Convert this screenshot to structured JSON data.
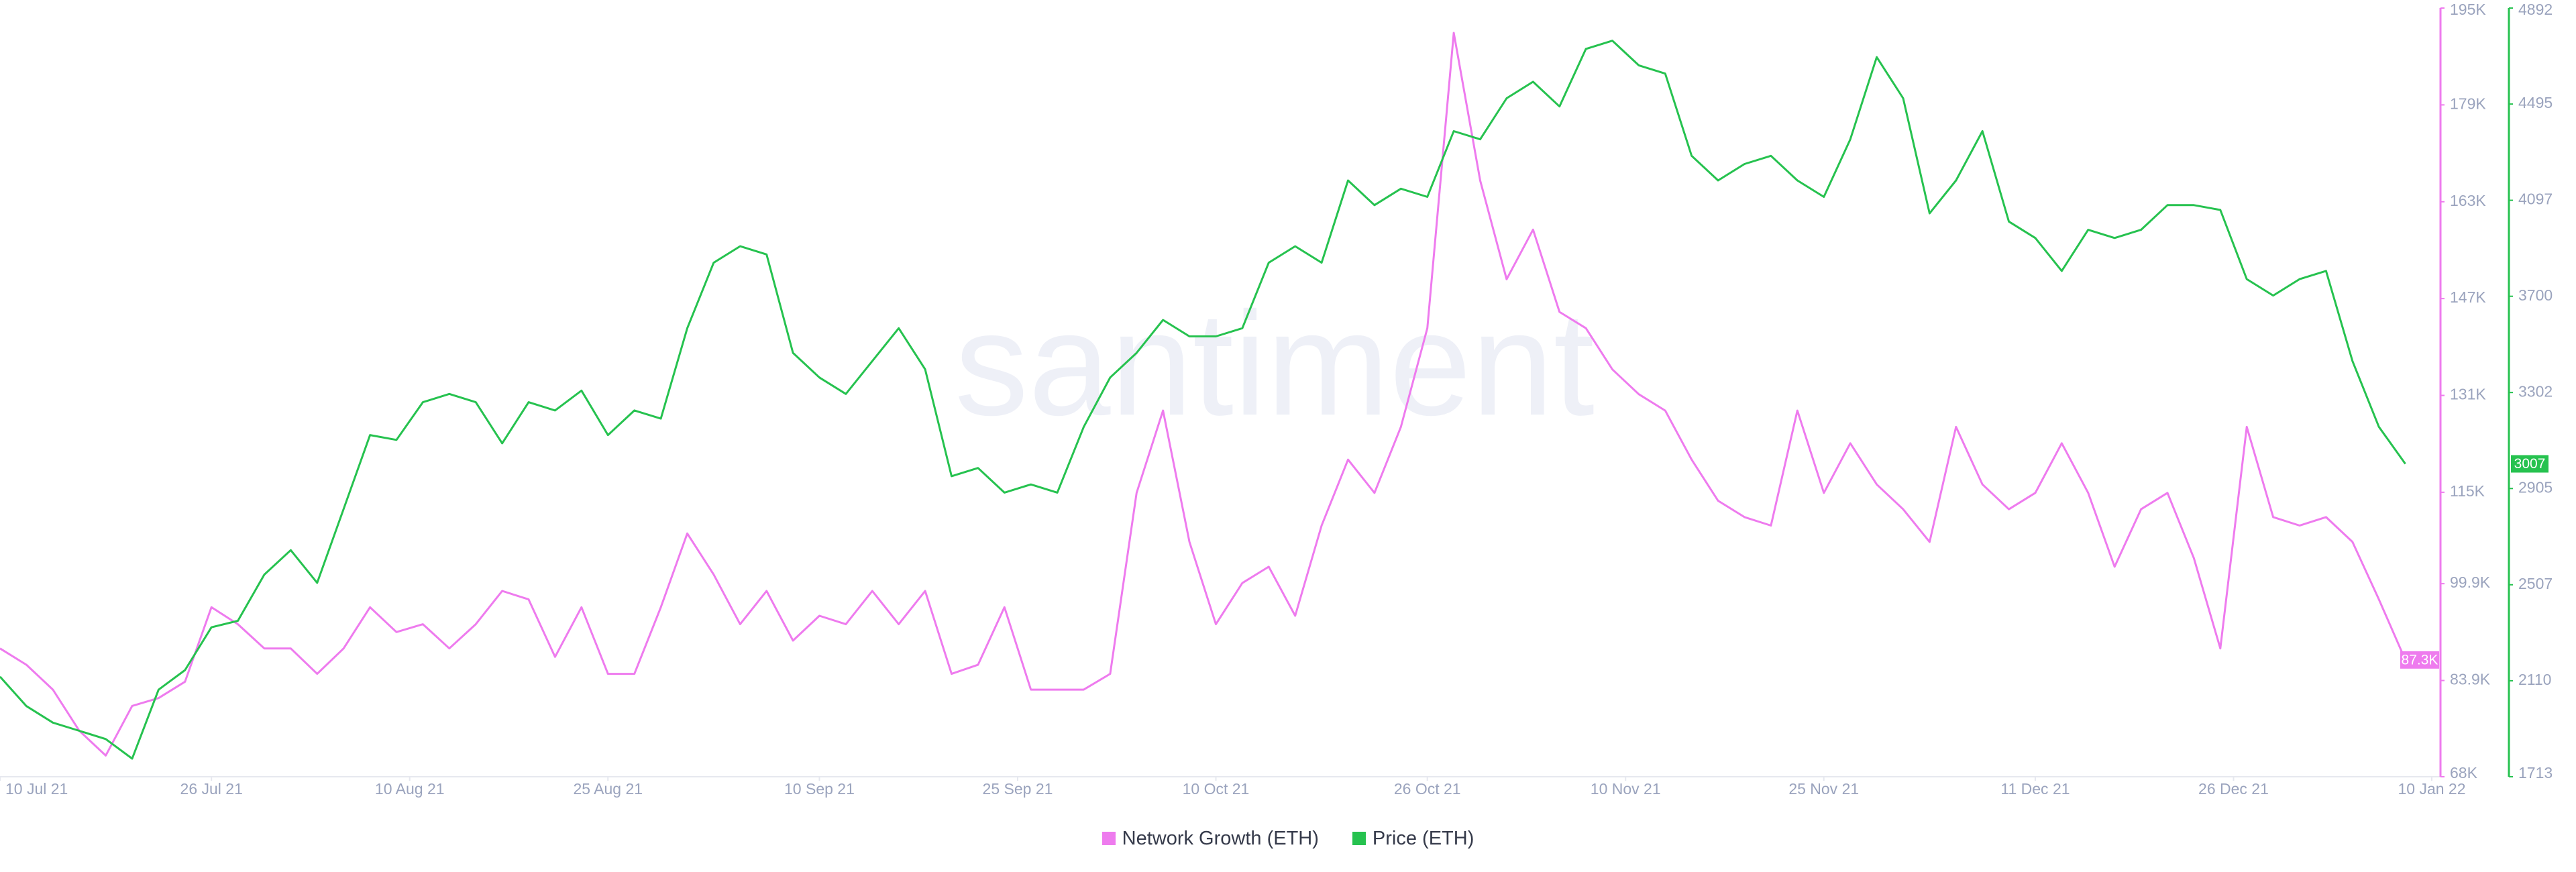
{
  "chart_data": {
    "type": "line",
    "watermark": "santiment",
    "x": [
      "10 Jul 21",
      "12 Jul 21",
      "14 Jul 21",
      "16 Jul 21",
      "18 Jul 21",
      "20 Jul 21",
      "22 Jul 21",
      "24 Jul 21",
      "26 Jul 21",
      "28 Jul 21",
      "30 Jul 21",
      "1 Aug 21",
      "3 Aug 21",
      "5 Aug 21",
      "7 Aug 21",
      "9 Aug 21",
      "11 Aug 21",
      "13 Aug 21",
      "15 Aug 21",
      "17 Aug 21",
      "19 Aug 21",
      "21 Aug 21",
      "23 Aug 21",
      "25 Aug 21",
      "27 Aug 21",
      "29 Aug 21",
      "31 Aug 21",
      "2 Sep 21",
      "4 Sep 21",
      "6 Sep 21",
      "8 Sep 21",
      "10 Sep 21",
      "12 Sep 21",
      "14 Sep 21",
      "16 Sep 21",
      "18 Sep 21",
      "20 Sep 21",
      "22 Sep 21",
      "24 Sep 21",
      "26 Sep 21",
      "28 Sep 21",
      "30 Sep 21",
      "2 Oct 21",
      "4 Oct 21",
      "6 Oct 21",
      "8 Oct 21",
      "10 Oct 21",
      "12 Oct 21",
      "14 Oct 21",
      "16 Oct 21",
      "18 Oct 21",
      "20 Oct 21",
      "22 Oct 21",
      "24 Oct 21",
      "26 Oct 21",
      "28 Oct 21",
      "30 Oct 21",
      "1 Nov 21",
      "3 Nov 21",
      "5 Nov 21",
      "7 Nov 21",
      "9 Nov 21",
      "11 Nov 21",
      "13 Nov 21",
      "15 Nov 21",
      "17 Nov 21",
      "19 Nov 21",
      "21 Nov 21",
      "23 Nov 21",
      "25 Nov 21",
      "27 Nov 21",
      "29 Nov 21",
      "1 Dec 21",
      "3 Dec 21",
      "5 Dec 21",
      "7 Dec 21",
      "9 Dec 21",
      "11 Dec 21",
      "13 Dec 21",
      "15 Dec 21",
      "17 Dec 21",
      "19 Dec 21",
      "21 Dec 21",
      "23 Dec 21",
      "25 Dec 21",
      "27 Dec 21",
      "29 Dec 21",
      "31 Dec 21",
      "2 Jan 22",
      "4 Jan 22",
      "6 Jan 22",
      "8 Jan 22"
    ],
    "xlim": [
      "10 Jul 21",
      "10 Jan 22"
    ],
    "xticks": [
      "10 Jul 21",
      "26 Jul 21",
      "10 Aug 21",
      "25 Aug 21",
      "10 Sep 21",
      "25 Sep 21",
      "10 Oct 21",
      "26 Oct 21",
      "10 Nov 21",
      "25 Nov 21",
      "11 Dec 21",
      "26 Dec 21",
      "10 Jan 22"
    ],
    "ylim": [
      68000,
      195000
    ],
    "yticks": [
      {
        "value": 68000,
        "label": "68K"
      },
      {
        "value": 83900,
        "label": "83.9K"
      },
      {
        "value": 99900,
        "label": "99.9K"
      },
      {
        "value": 115000,
        "label": "115K"
      },
      {
        "value": 131000,
        "label": "131K"
      },
      {
        "value": 147000,
        "label": "147K"
      },
      {
        "value": 163000,
        "label": "163K"
      },
      {
        "value": 179000,
        "label": "179K"
      },
      {
        "value": 195000,
        "label": "195K"
      }
    ],
    "y2lim": [
      1713,
      4892
    ],
    "y2ticks": [
      1713,
      2110,
      2507,
      2905,
      3302,
      3700,
      4097,
      4495,
      4892
    ],
    "series": [
      {
        "name": "Network Growth (ETH)",
        "color": "#ee7bee",
        "axis": "y",
        "end_label": "87.3K",
        "values": [
          89200,
          86500,
          82400,
          75600,
          71500,
          79700,
          81000,
          83700,
          96000,
          93200,
          89200,
          89200,
          85000,
          89200,
          96000,
          91900,
          93200,
          89200,
          93200,
          98700,
          97300,
          87800,
          96000,
          85000,
          85000,
          96000,
          108200,
          101400,
          93200,
          98700,
          90500,
          94600,
          93200,
          98700,
          93200,
          98700,
          85000,
          86500,
          96000,
          82400,
          82400,
          82400,
          85000,
          114900,
          128500,
          106800,
          93200,
          100000,
          102700,
          94600,
          109500,
          120400,
          114900,
          125800,
          142100,
          190900,
          166500,
          150200,
          158400,
          144800,
          142100,
          135300,
          131200,
          128500,
          120400,
          113600,
          110900,
          109500,
          128500,
          114900,
          123100,
          116300,
          112200,
          106800,
          125800,
          116300,
          112200,
          114900,
          123100,
          114900,
          102700,
          112200,
          114900,
          104100,
          89200,
          125800,
          110900,
          109500,
          110900,
          106800,
          97300,
          87300
        ]
      },
      {
        "name": "Price (ETH)",
        "color": "#26c24f",
        "axis": "y2",
        "values": [
          2127,
          2005,
          1937,
          1903,
          1869,
          1788,
          2073,
          2154,
          2331,
          2358,
          2549,
          2650,
          2515,
          2820,
          3126,
          3106,
          3262,
          3296,
          3262,
          3092,
          3262,
          3228,
          3310,
          3126,
          3228,
          3194,
          3568,
          3839,
          3907,
          3873,
          3466,
          3364,
          3296,
          3432,
          3568,
          3398,
          2956,
          2990,
          2888,
          2922,
          2888,
          3160,
          3364,
          3466,
          3602,
          3534,
          3534,
          3568,
          3839,
          3907,
          3839,
          4179,
          4077,
          4145,
          4111,
          4383,
          4349,
          4519,
          4587,
          4485,
          4723,
          4757,
          4655,
          4621,
          4281,
          4179,
          4247,
          4281,
          4179,
          4111,
          4349,
          4689,
          4519,
          4043,
          4179,
          4383,
          4009,
          3941,
          3805,
          3975,
          3941,
          3975,
          4077,
          4077,
          4057,
          3771,
          3703,
          3771,
          3805,
          3432,
          3160,
          3007
        ]
      }
    ]
  }
}
